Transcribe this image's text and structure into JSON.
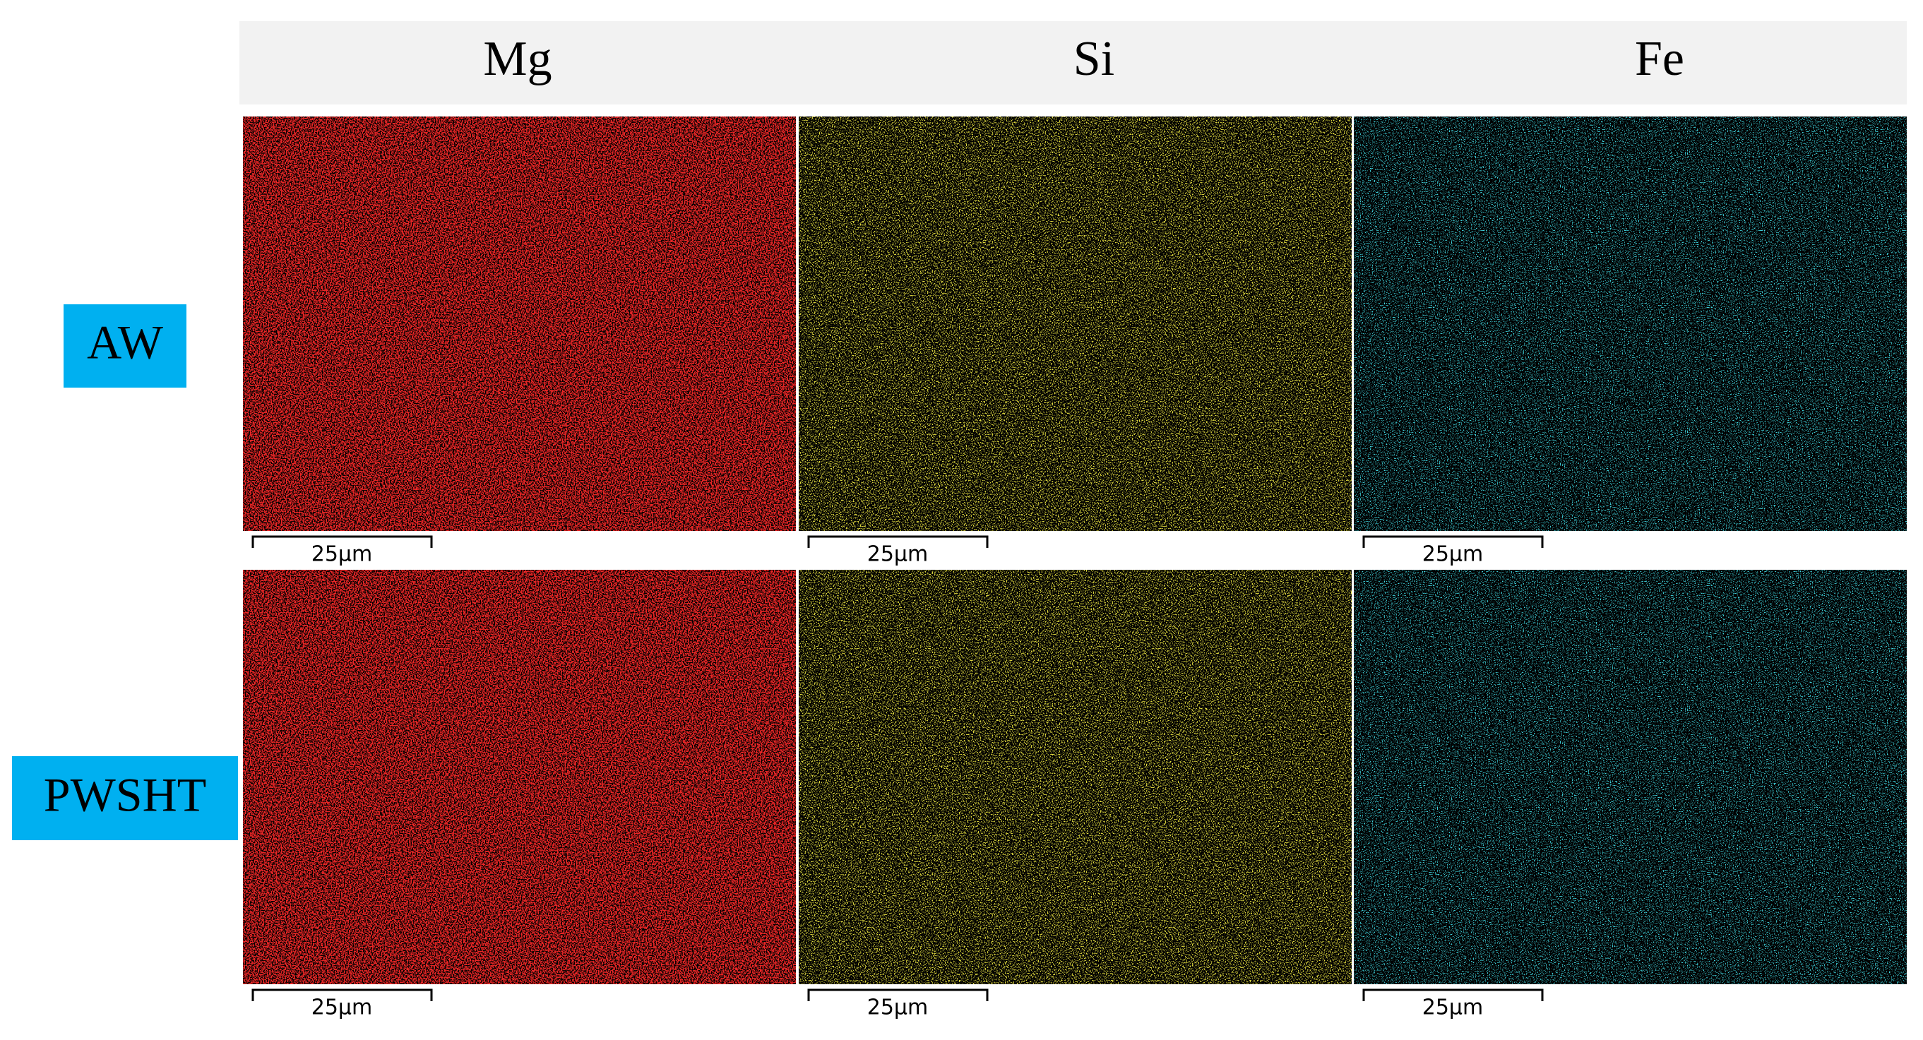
{
  "header": {
    "columns": [
      "Mg",
      "Si",
      "Fe"
    ]
  },
  "rows": [
    {
      "label": "AW",
      "scale_bars": [
        "25μm",
        "25μm",
        "25μm"
      ]
    },
    {
      "label": "PWSHT",
      "scale_bars": [
        "25μm",
        "25μm",
        "25μm"
      ]
    }
  ]
}
